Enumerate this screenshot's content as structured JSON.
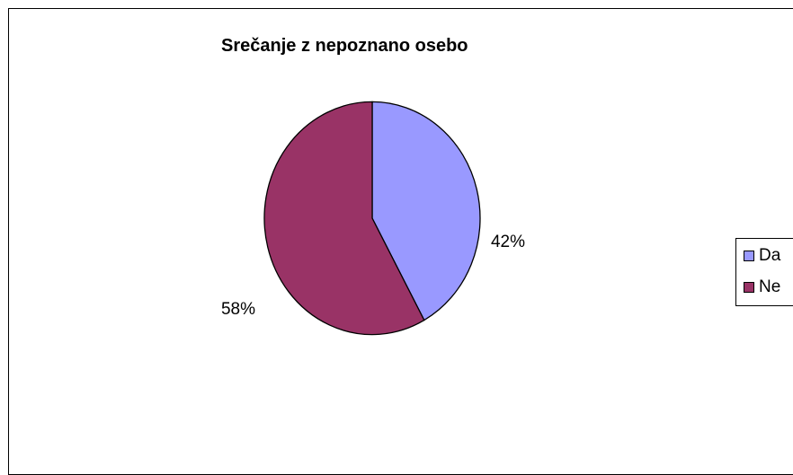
{
  "chart_data": {
    "type": "pie",
    "title": "Srečanje z nepoznano osebo",
    "categories": [
      "Da",
      "Ne"
    ],
    "values": [
      42,
      58
    ],
    "data_labels": [
      "42%",
      "58%"
    ],
    "colors": [
      "#9999ff",
      "#993366"
    ],
    "legend": {
      "position": "right",
      "entries": [
        "Da",
        "Ne"
      ]
    }
  }
}
